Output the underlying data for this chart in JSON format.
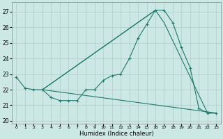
{
  "xlabel": "Humidex (Indice chaleur)",
  "xlim": [
    -0.5,
    23.5
  ],
  "ylim": [
    19.8,
    27.6
  ],
  "yticks": [
    20,
    21,
    22,
    23,
    24,
    25,
    26,
    27
  ],
  "xticks": [
    0,
    1,
    2,
    3,
    4,
    5,
    6,
    7,
    8,
    9,
    10,
    11,
    12,
    13,
    14,
    15,
    16,
    17,
    18,
    19,
    20,
    21,
    22,
    23
  ],
  "bg_color": "#cce8e4",
  "grid_color": "#b0ccc8",
  "line_color": "#1a7a6a",
  "curve_x": [
    0,
    1,
    2,
    3,
    4,
    5,
    6,
    7,
    8,
    9,
    10,
    11,
    12,
    13,
    14,
    15,
    16,
    17,
    18,
    19,
    20,
    21,
    22,
    23
  ],
  "curve_y": [
    22.8,
    22.1,
    22.0,
    22.0,
    21.5,
    21.3,
    21.3,
    21.3,
    22.0,
    22.0,
    22.6,
    22.9,
    23.0,
    24.0,
    25.3,
    26.2,
    27.1,
    27.1,
    26.3,
    24.7,
    23.4,
    20.8,
    20.5,
    20.5
  ],
  "line2_x": [
    3,
    16,
    17,
    22,
    23
  ],
  "line2_y": [
    22.0,
    27.1,
    26.3,
    20.5,
    20.5
  ],
  "line3_x": [
    3,
    23
  ],
  "line3_y": [
    22.0,
    20.5
  ],
  "line4_x": [
    3,
    16
  ],
  "line4_y": [
    22.0,
    27.1
  ]
}
